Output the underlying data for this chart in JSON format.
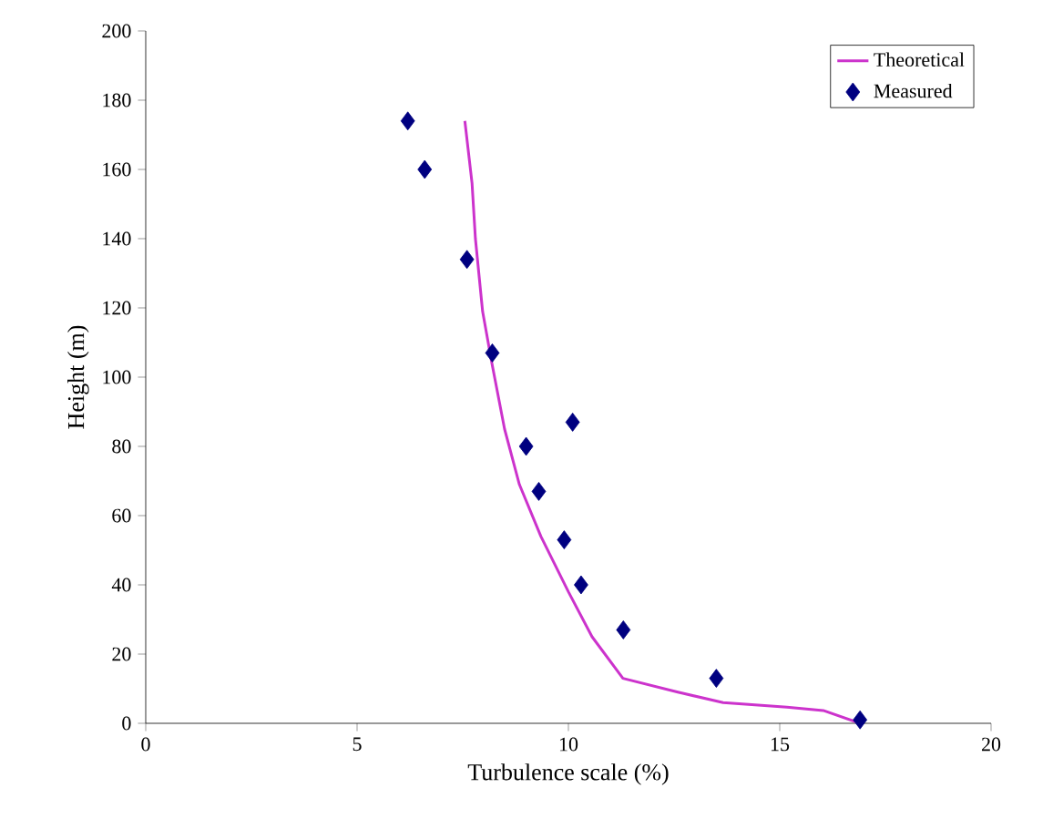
{
  "chart_data": {
    "type": "line",
    "xlabel": "Turbulence scale (%)",
    "ylabel": "Height (m)",
    "xlim": [
      0,
      20
    ],
    "ylim": [
      0,
      200
    ],
    "xticks": [
      0,
      5,
      10,
      15,
      20
    ],
    "yticks": [
      0,
      20,
      40,
      60,
      80,
      100,
      120,
      140,
      160,
      180,
      200
    ],
    "grid": false,
    "legend": "top right",
    "series": [
      {
        "name": "Theoretical",
        "color": "#cc33cc",
        "marker": "none",
        "line_style": "solid",
        "x": [
          7.55,
          7.72,
          7.8,
          7.97,
          8.19,
          8.49,
          8.84,
          9.35,
          10.0,
          10.56,
          11.29,
          12.59,
          13.66,
          15.17,
          16.03,
          16.9
        ],
        "values": [
          174,
          156,
          140,
          119,
          104,
          85,
          69,
          54,
          38,
          25,
          13,
          9,
          6,
          4.7,
          3.7,
          0
        ]
      },
      {
        "name": "Measured",
        "type": "scatter",
        "color": "#000080",
        "marker": "diamond",
        "x": [
          6.2,
          6.6,
          7.6,
          8.2,
          9.0,
          10.1,
          9.3,
          9.9,
          10.3,
          11.3,
          13.5,
          16.9
        ],
        "values": [
          174,
          160,
          134,
          107,
          80,
          87,
          67,
          53,
          40,
          27,
          13,
          1
        ]
      }
    ]
  }
}
